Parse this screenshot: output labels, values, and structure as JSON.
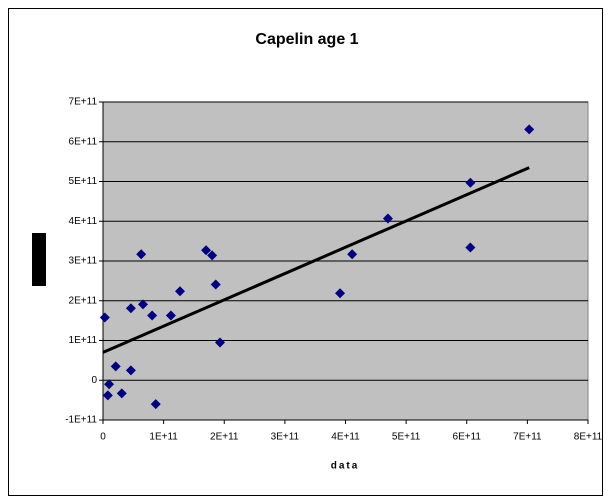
{
  "chart_data": {
    "type": "scatter",
    "title": "Capelin age 1",
    "x_label": "data",
    "series": [
      {
        "color": "#000080",
        "x": [
          3000000000.0,
          10000000000.0,
          8000000000.0,
          21000000000.0,
          31000000000.0,
          46000000000.0,
          46000000000.0,
          63000000000.0,
          66000000000.0,
          81000000000.0,
          87000000000.0,
          112000000000.0,
          127000000000.0,
          170000000000.0,
          180000000000.0,
          186000000000.0,
          193000000000.0,
          391000000000.0,
          411000000000.0,
          470000000000.0,
          606000000000.0,
          606000000000.0,
          703000000000.0
        ],
        "values": [
          158000000000.0,
          -10000000000.0,
          -38000000000.0,
          35000000000.0,
          -33000000000.0,
          25000000000.0,
          181000000000.0,
          317000000000.0,
          191000000000.0,
          163000000000.0,
          -60000000000.0,
          163000000000.0,
          224000000000.0,
          327000000000.0,
          314000000000.0,
          241000000000.0,
          95000000000.0,
          219000000000.0,
          317000000000.0,
          407000000000.0,
          497000000000.0,
          334000000000.0,
          631000000000.0
        ]
      }
    ],
    "trendline": {
      "color": "#000000",
      "x": [
        0,
        703000000000.0
      ],
      "values": [
        70000000000.0,
        535000000000.0
      ]
    },
    "xlim": [
      0,
      800000000000.0
    ],
    "xticks": [
      0,
      {
        "value": 100000000000.0,
        "label": "1E+11"
      },
      {
        "value": 200000000000.0,
        "label": "2E+11"
      },
      {
        "value": 300000000000.0,
        "label": "3E+11"
      },
      {
        "value": 400000000000.0,
        "label": "4E+11"
      },
      {
        "value": 500000000000.0,
        "label": "5E+11"
      },
      {
        "value": 600000000000.0,
        "label": "6E+11"
      },
      {
        "value": 700000000000.0,
        "label": "7E+11"
      },
      {
        "value": 800000000000.0,
        "label": "8E+11"
      }
    ],
    "ylim": [
      -100000000000.0,
      700000000000.0
    ],
    "yticks": [
      {
        "value": -100000000000.0,
        "label": "-1E+11"
      },
      0,
      {
        "value": 100000000000.0,
        "label": "1E+11"
      },
      {
        "value": 200000000000.0,
        "label": "2E+11"
      },
      {
        "value": 300000000000.0,
        "label": "3E+11"
      },
      {
        "value": 400000000000.0,
        "label": "4E+11"
      },
      {
        "value": 500000000000.0,
        "label": "5E+11"
      },
      {
        "value": 600000000000.0,
        "label": "6E+11"
      },
      {
        "value": 700000000000.0,
        "label": "7E+11"
      }
    ],
    "grid": true,
    "plot_background": "#c0c0c0"
  }
}
